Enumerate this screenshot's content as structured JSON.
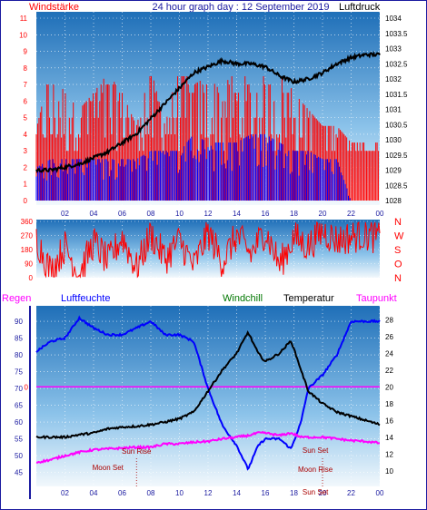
{
  "header": {
    "left": "Windstärke",
    "center": "24 hour graph day : 12 September 2019",
    "right": "Luftdruck"
  },
  "colors": {
    "red": "#ff0000",
    "blue": "#0000ff",
    "darkblue": "#1a1aa0",
    "black": "#000000",
    "magenta": "#ff00ff",
    "green": "#007700"
  },
  "chart_data": [
    {
      "type": "line",
      "x_ticks": [
        "02",
        "04",
        "06",
        "08",
        "10",
        "12",
        "14",
        "16",
        "18",
        "20",
        "22",
        "00"
      ],
      "y_left_ticks": [
        "0",
        "1",
        "2",
        "3",
        "4",
        "5",
        "6",
        "7",
        "8",
        "9",
        "10",
        "11"
      ],
      "y_right_ticks": [
        "1028",
        "1028.5",
        "1029",
        "1029.5",
        "1030",
        "1030.5",
        "1031",
        "1031.5",
        "1032",
        "1032.5",
        "1033",
        "1033.5",
        "1034"
      ],
      "ylim_left": [
        0,
        11
      ],
      "ylim_right": [
        1028,
        1034
      ],
      "series": [
        {
          "name": "Windstärke",
          "type": "bar-gusts",
          "color": "#ff0000",
          "x": [
            0,
            1,
            2,
            3,
            4,
            5,
            6,
            7,
            8,
            9,
            10,
            11,
            12,
            13,
            14,
            15,
            16,
            17,
            18,
            19,
            20,
            21,
            22,
            23,
            24
          ],
          "values": [
            3.8,
            7.5,
            6,
            5,
            6,
            7.2,
            6,
            4,
            7.5,
            4,
            8,
            6.5,
            7,
            6,
            8,
            6.5,
            11,
            7.5,
            6,
            5,
            4,
            4,
            3,
            3,
            3
          ]
        },
        {
          "name": "Wind avg",
          "color": "#0000ff",
          "x": [
            0,
            1,
            2,
            3,
            4,
            5,
            6,
            7,
            8,
            9,
            10,
            11,
            12,
            13,
            14,
            15,
            16,
            17,
            18,
            19,
            20,
            21,
            22,
            23,
            24
          ],
          "values": [
            2,
            2.5,
            2.5,
            2.5,
            2.5,
            2.5,
            2.5,
            2.5,
            3,
            3,
            3,
            4,
            3.5,
            3.5,
            3.5,
            4,
            4,
            3.5,
            3,
            3,
            2.5,
            2.5,
            0,
            0,
            0
          ]
        },
        {
          "name": "Luftdruck",
          "color": "#000000",
          "x": [
            0,
            1,
            2,
            3,
            4,
            5,
            6,
            7,
            8,
            9,
            10,
            11,
            12,
            13,
            14,
            15,
            16,
            17,
            18,
            19,
            20,
            21,
            22,
            23,
            24
          ],
          "values": [
            1029,
            1029,
            1029.1,
            1029.2,
            1029.4,
            1029.6,
            1029.9,
            1030.2,
            1030.7,
            1031.2,
            1031.7,
            1032.2,
            1032.4,
            1032.6,
            1032.5,
            1032.5,
            1032.4,
            1032.1,
            1031.9,
            1032.0,
            1032.2,
            1032.5,
            1032.7,
            1032.8,
            1032.8
          ]
        }
      ]
    },
    {
      "type": "line",
      "x_ticks": [
        "02",
        "04",
        "06",
        "08",
        "10",
        "12",
        "14",
        "16",
        "18",
        "20",
        "22",
        "00"
      ],
      "y_left_ticks": [
        "0",
        "90",
        "180",
        "270",
        "360"
      ],
      "y_right_labels": [
        "N",
        "W",
        "S",
        "O",
        "N"
      ],
      "ylim": [
        0,
        360
      ],
      "series": [
        {
          "name": "Windrichtung",
          "color": "#ff0000",
          "x": [
            0,
            1,
            2,
            3,
            4,
            5,
            6,
            7,
            8,
            9,
            10,
            11,
            12,
            13,
            14,
            15,
            16,
            17,
            18,
            19,
            20,
            21,
            22,
            23,
            24
          ],
          "values": [
            250,
            40,
            200,
            20,
            230,
            100,
            260,
            60,
            280,
            120,
            240,
            70,
            290,
            100,
            270,
            150,
            300,
            80,
            260,
            200,
            300,
            240,
            260,
            280,
            250
          ]
        }
      ]
    },
    {
      "type": "line",
      "legend": [
        "Regen",
        "Luftfeuchte",
        "Windchill",
        "Temperatur",
        "Taupunkt"
      ],
      "x_ticks": [
        "02",
        "04",
        "06",
        "08",
        "10",
        "12",
        "14",
        "16",
        "18",
        "20",
        "22",
        "00"
      ],
      "y_left_ticks": [
        "45",
        "50",
        "55",
        "60",
        "65",
        "70",
        "75",
        "80",
        "85",
        "90"
      ],
      "y_right_ticks": [
        "10",
        "12",
        "14",
        "16",
        "18",
        "20",
        "22",
        "24",
        "26",
        "28"
      ],
      "ylim_left": [
        43,
        93
      ],
      "ylim_right": [
        9,
        29
      ],
      "rain_total_label": "0",
      "annotations": [
        {
          "text": "Moon Set",
          "hour": 5
        },
        {
          "text": "Sun Rise",
          "hour": 7
        },
        {
          "text": "Sun Set",
          "hour": 19.5
        },
        {
          "text": "Moon Rise",
          "hour": 19.5
        },
        {
          "text": "Sun Set",
          "hour": 19.5
        }
      ],
      "series": [
        {
          "name": "Luftfeuchte",
          "color": "#0000ff",
          "x": [
            0,
            1,
            2,
            3,
            4,
            5,
            6,
            7,
            8,
            9,
            10,
            11,
            12,
            13,
            14,
            14.8,
            15.5,
            16,
            17,
            17.8,
            18.5,
            19,
            20,
            21,
            22,
            23,
            24
          ],
          "values": [
            81,
            84,
            85,
            91,
            88,
            86,
            86,
            88,
            90,
            86,
            86,
            84,
            70,
            59,
            53,
            46,
            53,
            55,
            55,
            52,
            60,
            70,
            74,
            80,
            90,
            90,
            90
          ]
        },
        {
          "name": "Temperatur",
          "color": "#000000",
          "x": [
            0,
            1,
            2,
            3,
            4,
            5,
            6,
            7,
            8,
            9,
            10,
            11,
            12,
            13,
            14,
            14.8,
            15.5,
            16,
            17,
            17.8,
            18.5,
            19,
            20,
            21,
            22,
            23,
            24
          ],
          "values": [
            14,
            14,
            14,
            14.3,
            14.5,
            15,
            15.2,
            15.3,
            15.5,
            15.8,
            16.2,
            17,
            19.5,
            22,
            24,
            26.5,
            24,
            23,
            24,
            25.5,
            22,
            19.5,
            18,
            17,
            16.5,
            16,
            15.5
          ]
        },
        {
          "name": "Taupunkt",
          "color": "#ff00ff",
          "x": [
            0,
            1,
            2,
            3,
            4,
            5,
            6,
            7,
            8,
            9,
            10,
            11,
            12,
            13,
            14,
            14.8,
            15.5,
            16,
            17,
            17.8,
            18.5,
            19,
            20,
            21,
            22,
            23,
            24
          ],
          "values": [
            11,
            11.3,
            11.8,
            12.2,
            12.5,
            12.6,
            12.7,
            12.8,
            12.8,
            13.2,
            13.2,
            13.4,
            13.5,
            13.8,
            14,
            14.2,
            14.5,
            14.5,
            14.2,
            14.5,
            14,
            14,
            14,
            13.8,
            13.6,
            13.5,
            13.3
          ]
        }
      ]
    }
  ]
}
